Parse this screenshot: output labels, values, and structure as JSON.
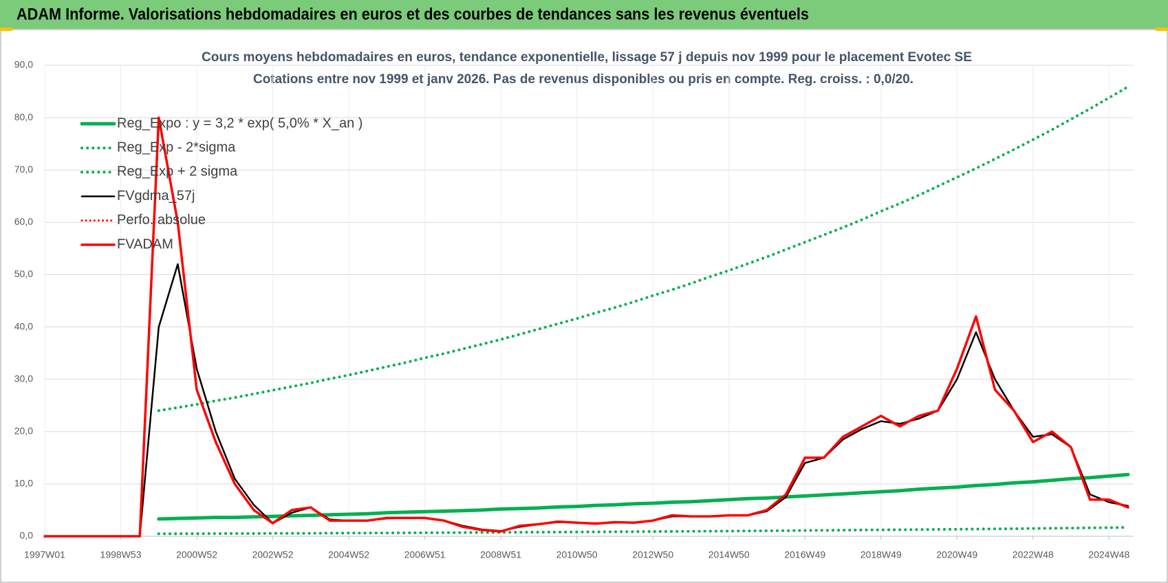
{
  "header": {
    "title": "ADAM Informe. Valorisations hebdomadaires en euros et des courbes de tendances sans les revenus éventuels"
  },
  "chart_data": {
    "type": "line",
    "title": "Cours moyens hebdomadaires en euros, tendance exponentielle, lissage 57 j depuis nov 1999 pour le placement Evotec SE",
    "subtitle": "Cotations entre nov 1999 et janv 2026. Pas de revenus disponibles ou pris en compte. Reg. croiss. : 0,0/20.",
    "categories": [
      "1997W01",
      null,
      null,
      null,
      "1998W53",
      null,
      null,
      null,
      "2000W52",
      null,
      null,
      null,
      "2002W52",
      null,
      null,
      null,
      "2004W52",
      null,
      null,
      null,
      "2006W51",
      null,
      null,
      null,
      "2008W51",
      null,
      null,
      null,
      "2010W50",
      null,
      null,
      null,
      "2012W50",
      null,
      null,
      null,
      "2014W50",
      null,
      null,
      null,
      "2016W49",
      null,
      null,
      null,
      "2018W49",
      null,
      null,
      null,
      "2020W49",
      null,
      null,
      null,
      "2022W48",
      null,
      null,
      null,
      "2024W48",
      null
    ],
    "ylim": [
      0,
      90
    ],
    "yticks": [
      {
        "value": 0,
        "label": "0,0"
      },
      {
        "value": 10,
        "label": "10,0"
      },
      {
        "value": 20,
        "label": "20,0"
      },
      {
        "value": 30,
        "label": "30,0"
      },
      {
        "value": 40,
        "label": "40,0"
      },
      {
        "value": 50,
        "label": "50,0"
      },
      {
        "value": 60,
        "label": "60,0"
      },
      {
        "value": 70,
        "label": "70,0"
      },
      {
        "value": 80,
        "label": "80,0"
      },
      {
        "value": 90,
        "label": "90,0"
      }
    ],
    "grid": true,
    "series": [
      {
        "name": "Reg_Expo : y = 3,2 * exp( 5,0% *  X_an )",
        "color": "#00b050",
        "style": "solid",
        "values": [
          null,
          null,
          null,
          null,
          null,
          null,
          3.3,
          3.4,
          3.5,
          3.6,
          3.6,
          3.7,
          3.8,
          3.9,
          4.0,
          4.1,
          4.2,
          4.3,
          4.5,
          4.6,
          4.7,
          4.8,
          4.9,
          5.0,
          5.2,
          5.3,
          5.4,
          5.6,
          5.7,
          5.9,
          6.0,
          6.2,
          6.3,
          6.5,
          6.6,
          6.8,
          7.0,
          7.2,
          7.3,
          7.5,
          7.7,
          7.9,
          8.1,
          8.3,
          8.5,
          8.7,
          9.0,
          9.2,
          9.4,
          9.7,
          9.9,
          10.2,
          10.4,
          10.7,
          11.0,
          11.2,
          11.5,
          11.8
        ]
      },
      {
        "name": "Reg_Exp - 2*sigma",
        "color": "#00b050",
        "style": "dotted",
        "values": [
          null,
          null,
          null,
          null,
          null,
          null,
          0.47,
          0.48,
          0.49,
          0.51,
          0.52,
          0.53,
          0.55,
          0.56,
          0.57,
          0.59,
          0.6,
          0.62,
          0.63,
          0.65,
          0.67,
          0.68,
          0.7,
          0.72,
          0.74,
          0.76,
          0.77,
          0.79,
          0.81,
          0.84,
          0.86,
          0.88,
          0.9,
          0.92,
          0.95,
          0.97,
          0.99,
          1.02,
          1.05,
          1.07,
          1.1,
          1.13,
          1.16,
          1.19,
          1.22,
          1.25,
          1.28,
          1.31,
          1.34,
          1.38,
          1.41,
          1.45,
          1.48,
          1.52,
          1.56,
          1.6,
          1.64,
          1.68
        ]
      },
      {
        "name": "Reg_Exp + 2 sigma",
        "color": "#00b050",
        "style": "dotted",
        "values": [
          null,
          null,
          null,
          null,
          null,
          null,
          24.0,
          24.6,
          25.2,
          25.9,
          26.5,
          27.2,
          27.9,
          28.6,
          29.3,
          30.1,
          30.8,
          31.6,
          32.4,
          33.2,
          34.1,
          34.9,
          35.8,
          36.7,
          37.6,
          38.6,
          39.6,
          40.6,
          41.6,
          42.7,
          43.7,
          44.8,
          46.0,
          47.1,
          48.3,
          49.6,
          50.8,
          52.1,
          53.4,
          54.8,
          56.2,
          57.6,
          59.0,
          60.5,
          62.1,
          63.6,
          65.2,
          66.9,
          68.6,
          70.3,
          72.1,
          73.9,
          75.8,
          77.7,
          79.7,
          81.7,
          83.8,
          85.9
        ]
      },
      {
        "name": "FVgdma_57j",
        "color": "#000000",
        "style": "solid",
        "values": [
          0,
          0,
          0,
          0,
          0,
          0,
          40,
          52,
          32,
          20,
          11,
          6,
          2.5,
          4.5,
          5.5,
          3.2,
          3,
          3,
          3.4,
          3.5,
          3.5,
          3,
          2,
          1.3,
          1,
          1.8,
          2.3,
          2.7,
          2.6,
          2.5,
          2.6,
          2.6,
          3,
          3.8,
          3.8,
          3.8,
          4,
          4,
          4.8,
          7.5,
          14,
          15,
          18.5,
          20.5,
          22,
          21.5,
          22.5,
          24,
          30,
          39,
          30,
          24,
          19,
          19.5,
          17,
          8,
          6.5,
          5.8
        ]
      },
      {
        "name": "Perfo. absolue",
        "color": "#ff0000",
        "style": "dotted",
        "values": [
          null,
          null,
          null,
          null,
          null,
          null,
          null,
          null,
          null,
          null,
          null,
          null,
          null,
          null,
          null,
          null,
          null,
          null,
          null,
          null,
          null,
          null,
          null,
          null,
          null,
          null,
          null,
          null,
          null,
          null,
          null,
          null,
          null,
          null,
          null,
          null,
          null,
          null,
          null,
          null,
          null,
          null,
          null,
          null,
          null,
          null,
          null,
          null,
          null,
          null,
          null,
          null,
          null,
          null,
          null,
          null,
          null,
          null
        ]
      },
      {
        "name": "FVADAM",
        "color": "#ff0000",
        "style": "solid",
        "values": [
          0,
          0,
          0,
          0,
          0,
          0,
          80,
          60,
          28,
          18,
          10,
          5,
          2.5,
          5,
          5.5,
          3,
          3,
          3,
          3.5,
          3.5,
          3.5,
          3,
          1.8,
          1.2,
          0.9,
          2,
          2.3,
          2.8,
          2.6,
          2.4,
          2.7,
          2.6,
          3,
          4,
          3.8,
          3.8,
          4,
          4,
          5,
          8,
          15,
          15,
          19,
          21,
          23,
          21,
          23,
          24,
          32,
          42,
          28,
          24,
          18,
          20,
          17,
          7,
          7,
          5.5
        ]
      }
    ]
  }
}
